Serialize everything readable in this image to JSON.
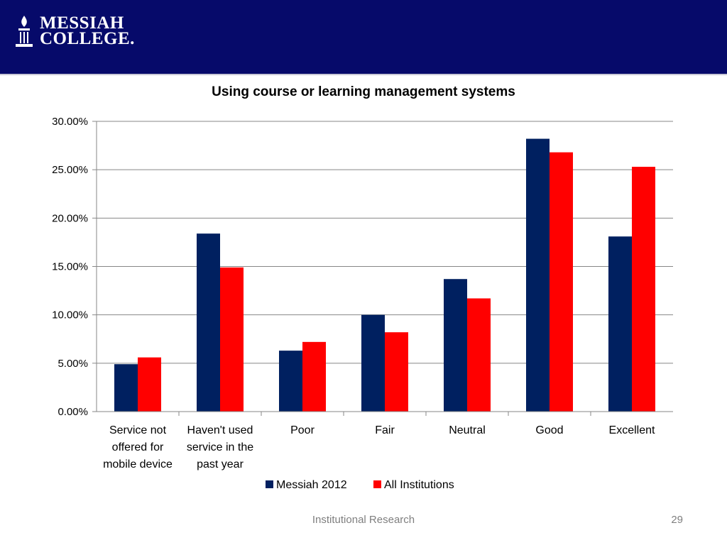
{
  "header": {
    "logo_line1": "MESSIAH",
    "logo_line2": "COLLEGE.",
    "background_color": "#060a6a"
  },
  "footer": {
    "text": "Institutional Research",
    "page_number": "29"
  },
  "chart_data": {
    "type": "bar",
    "title": "Using course or learning management systems",
    "xlabel": "",
    "ylabel": "",
    "ylim": [
      0,
      30
    ],
    "yticks": [
      "0.00%",
      "5.00%",
      "10.00%",
      "15.00%",
      "20.00%",
      "25.00%",
      "30.00%"
    ],
    "grid": true,
    "legend_position": "bottom",
    "categories": [
      [
        "Service not",
        "offered for",
        "mobile device"
      ],
      [
        "Haven't used",
        "service in the",
        "past year"
      ],
      [
        "Poor"
      ],
      [
        "Fair"
      ],
      [
        "Neutral"
      ],
      [
        "Good"
      ],
      [
        "Excellent"
      ]
    ],
    "series": [
      {
        "name": "Messiah 2012",
        "color": "#002060",
        "values": [
          4.9,
          18.4,
          6.3,
          10.0,
          13.7,
          28.2,
          18.1
        ]
      },
      {
        "name": "All Institutions",
        "color": "#ff0000",
        "values": [
          5.6,
          14.9,
          7.2,
          8.2,
          11.7,
          26.8,
          25.3
        ]
      }
    ]
  }
}
